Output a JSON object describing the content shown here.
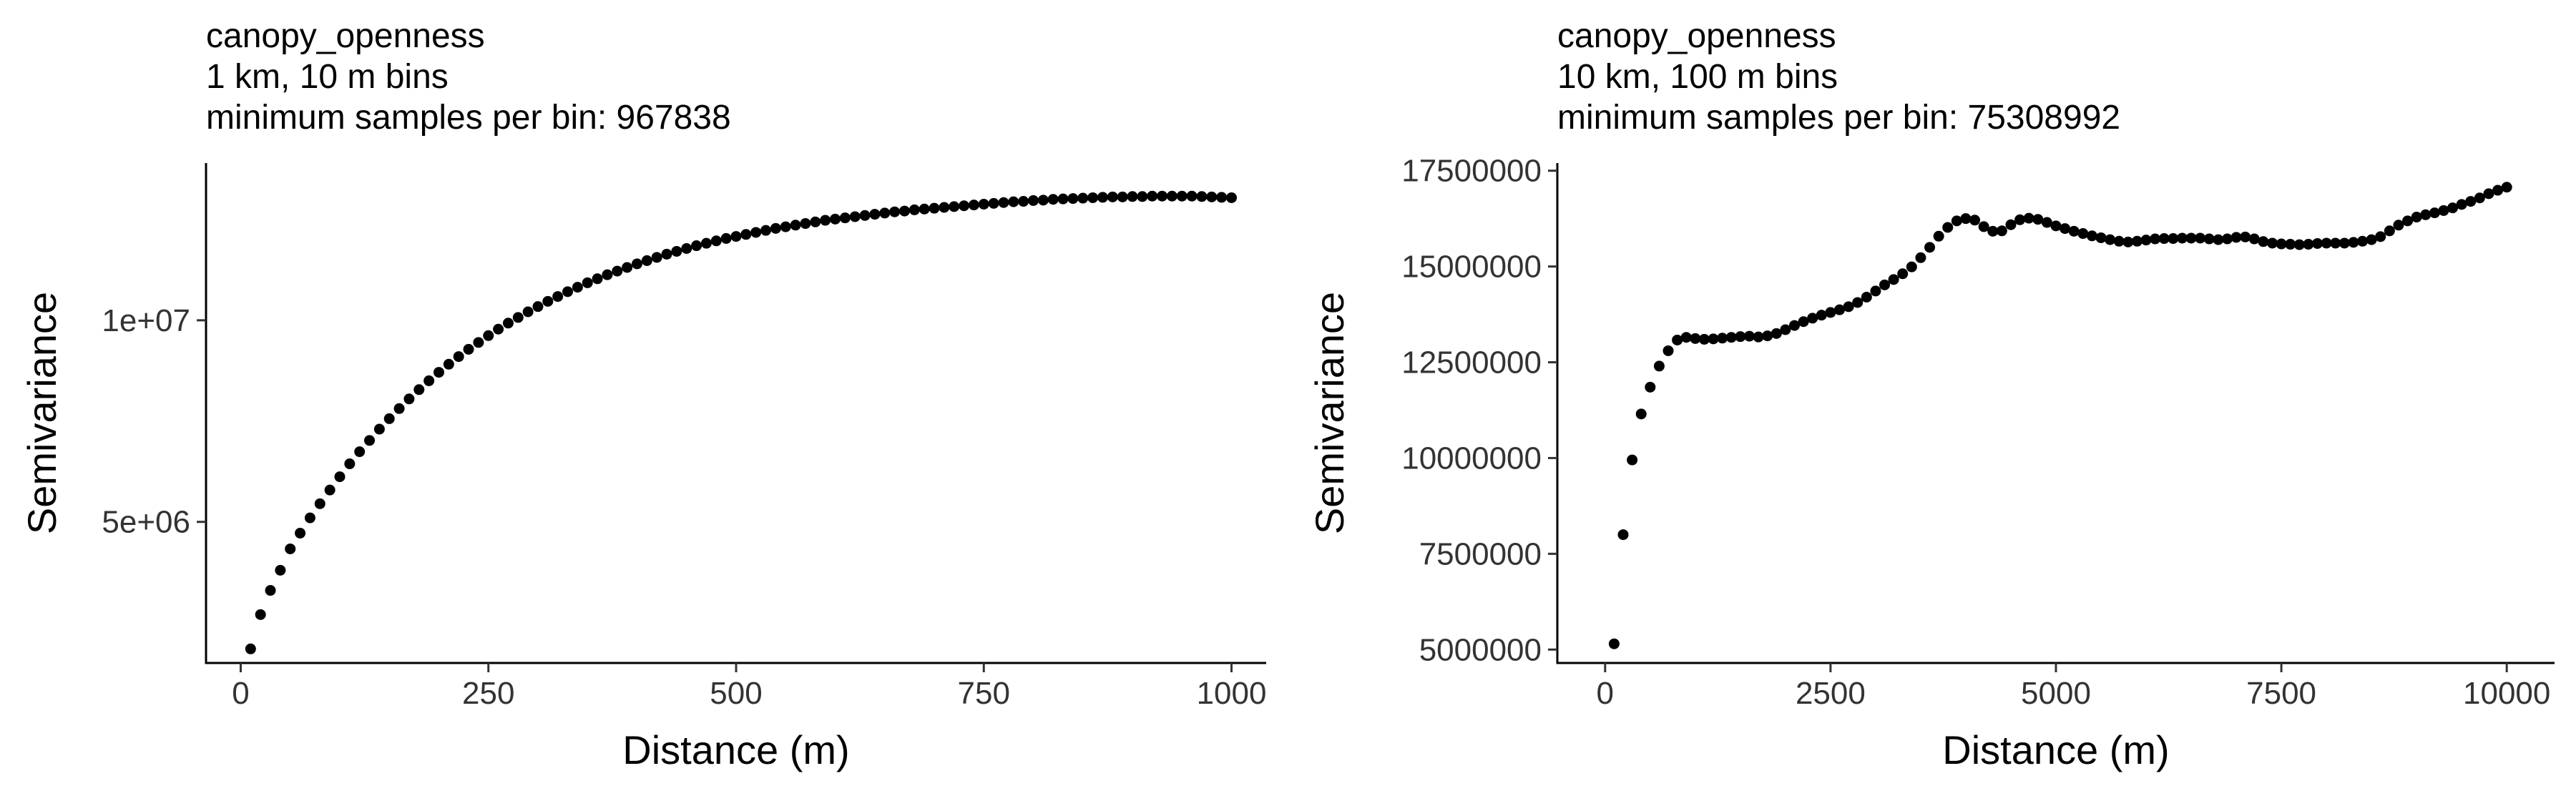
{
  "chart_data": [
    {
      "type": "scatter",
      "title": "canopy_openness",
      "subtitle_lines": [
        "1 km, 10 m bins",
        "minimum samples per bin: 967838"
      ],
      "xlabel": "Distance (m)",
      "ylabel": "Semivariance",
      "xlim": [
        -35,
        1035
      ],
      "ylim": [
        1500000,
        13900000
      ],
      "xticks": [
        0,
        250,
        500,
        750,
        1000
      ],
      "xtick_labels": [
        "0",
        "250",
        "500",
        "750",
        "1000"
      ],
      "yticks": [
        5000000,
        10000000
      ],
      "ytick_labels": [
        "5e+06",
        "1e+07"
      ],
      "grid": false,
      "legend": "none",
      "point_color": "#000000",
      "series": [
        {
          "x": [
            10,
            20,
            30,
            40,
            50,
            60,
            70,
            80,
            90,
            100,
            110,
            120,
            130,
            140,
            150,
            160,
            170,
            180,
            190,
            200,
            210,
            220,
            230,
            240,
            250,
            260,
            270,
            280,
            290,
            300,
            310,
            320,
            330,
            340,
            350,
            360,
            370,
            380,
            390,
            400,
            410,
            420,
            430,
            440,
            450,
            460,
            470,
            480,
            490,
            500,
            510,
            520,
            530,
            540,
            550,
            560,
            570,
            580,
            590,
            600,
            610,
            620,
            630,
            640,
            650,
            660,
            670,
            680,
            690,
            700,
            710,
            720,
            730,
            740,
            750,
            760,
            770,
            780,
            790,
            800,
            810,
            820,
            830,
            840,
            850,
            860,
            870,
            880,
            890,
            900,
            910,
            920,
            930,
            940,
            950,
            960,
            970,
            980,
            990,
            1000
          ],
          "y": [
            1850000,
            2700000,
            3300000,
            3800000,
            4330000,
            4720000,
            5100000,
            5450000,
            5790000,
            6120000,
            6440000,
            6740000,
            7020000,
            7300000,
            7560000,
            7810000,
            8050000,
            8280000,
            8500000,
            8710000,
            8910000,
            9100000,
            9280000,
            9450000,
            9620000,
            9780000,
            9930000,
            10070000,
            10210000,
            10340000,
            10470000,
            10590000,
            10710000,
            10820000,
            10930000,
            11030000,
            11130000,
            11220000,
            11310000,
            11400000,
            11480000,
            11560000,
            11640000,
            11710000,
            11780000,
            11850000,
            11910000,
            11970000,
            12030000,
            12080000,
            12130000,
            12180000,
            12230000,
            12280000,
            12320000,
            12360000,
            12400000,
            12440000,
            12480000,
            12510000,
            12540000,
            12570000,
            12600000,
            12630000,
            12660000,
            12690000,
            12710000,
            12740000,
            12760000,
            12780000,
            12800000,
            12820000,
            12840000,
            12860000,
            12880000,
            12900000,
            12920000,
            12940000,
            12950000,
            12970000,
            12980000,
            13000000,
            13010000,
            13020000,
            13030000,
            13040000,
            13050000,
            13060000,
            13060000,
            13070000,
            13070000,
            13080000,
            13080000,
            13080000,
            13080000,
            13080000,
            13070000,
            13060000,
            13050000,
            13040000
          ]
        }
      ]
    },
    {
      "type": "scatter",
      "title": "canopy_openness",
      "subtitle_lines": [
        "10 km, 100 m bins",
        "minimum samples per bin: 75308992"
      ],
      "xlabel": "Distance (m)",
      "ylabel": "Semivariance",
      "xlim": [
        -530,
        10530
      ],
      "ylim": [
        4650000,
        17700000
      ],
      "xticks": [
        0,
        2500,
        5000,
        7500,
        10000
      ],
      "xtick_labels": [
        "0",
        "2500",
        "5000",
        "7500",
        "10000"
      ],
      "yticks": [
        5000000,
        7500000,
        10000000,
        12500000,
        15000000,
        17500000
      ],
      "ytick_labels": [
        "5000000",
        "7500000",
        "10000000",
        "12500000",
        "15000000",
        "17500000"
      ],
      "grid": false,
      "legend": "none",
      "point_color": "#000000",
      "series": [
        {
          "x": [
            100,
            200,
            300,
            400,
            500,
            600,
            700,
            800,
            900,
            1000,
            1100,
            1200,
            1300,
            1400,
            1500,
            1600,
            1700,
            1800,
            1900,
            2000,
            2100,
            2200,
            2300,
            2400,
            2500,
            2600,
            2700,
            2800,
            2900,
            3000,
            3100,
            3200,
            3300,
            3400,
            3500,
            3600,
            3700,
            3800,
            3900,
            4000,
            4100,
            4200,
            4300,
            4400,
            4500,
            4600,
            4700,
            4800,
            4900,
            5000,
            5100,
            5200,
            5300,
            5400,
            5500,
            5600,
            5700,
            5800,
            5900,
            6000,
            6100,
            6200,
            6300,
            6400,
            6500,
            6600,
            6700,
            6800,
            6900,
            7000,
            7100,
            7200,
            7300,
            7400,
            7500,
            7600,
            7700,
            7800,
            7900,
            8000,
            8100,
            8200,
            8300,
            8400,
            8500,
            8600,
            8700,
            8800,
            8900,
            9000,
            9100,
            9200,
            9300,
            9400,
            9500,
            9600,
            9700,
            9800,
            9900,
            10000
          ],
          "y": [
            5150000,
            8000000,
            9950000,
            11150000,
            11850000,
            12400000,
            12800000,
            13080000,
            13150000,
            13120000,
            13100000,
            13110000,
            13130000,
            13150000,
            13170000,
            13180000,
            13160000,
            13190000,
            13250000,
            13350000,
            13460000,
            13560000,
            13650000,
            13730000,
            13800000,
            13870000,
            13950000,
            14060000,
            14200000,
            14360000,
            14520000,
            14660000,
            14810000,
            14990000,
            15230000,
            15500000,
            15790000,
            16020000,
            16190000,
            16250000,
            16210000,
            16040000,
            15920000,
            15930000,
            16090000,
            16220000,
            16260000,
            16230000,
            16150000,
            16060000,
            15990000,
            15920000,
            15860000,
            15800000,
            15750000,
            15700000,
            15660000,
            15640000,
            15660000,
            15690000,
            15720000,
            15730000,
            15730000,
            15740000,
            15740000,
            15740000,
            15720000,
            15700000,
            15720000,
            15760000,
            15770000,
            15720000,
            15650000,
            15610000,
            15590000,
            15580000,
            15570000,
            15580000,
            15600000,
            15610000,
            15610000,
            15610000,
            15630000,
            15660000,
            15700000,
            15780000,
            15930000,
            16080000,
            16190000,
            16290000,
            16350000,
            16400000,
            16460000,
            16530000,
            16620000,
            16700000,
            16790000,
            16900000,
            16990000,
            17070000
          ]
        }
      ]
    }
  ]
}
